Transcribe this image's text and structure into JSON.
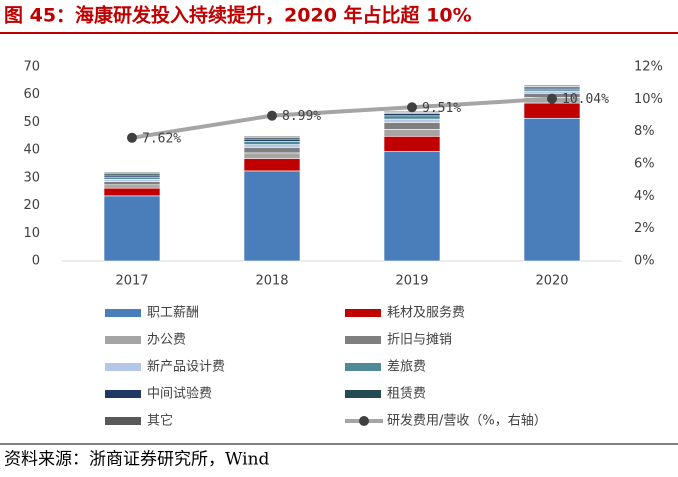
{
  "chart_data": {
    "type": "bar",
    "title": "图 45：海康研发投入持续提升，2020 年占比超 10%",
    "source": "资料来源：浙商证券研究所，Wind",
    "categories": [
      "2017",
      "2018",
      "2019",
      "2020"
    ],
    "ylim": [
      0,
      70
    ],
    "yticks": [
      0,
      10,
      20,
      30,
      40,
      50,
      60,
      70
    ],
    "y2lim": [
      0,
      12
    ],
    "y2ticks": [
      {
        "value": 0,
        "label": "0%"
      },
      {
        "value": 2,
        "label": "2%"
      },
      {
        "value": 4,
        "label": "4%"
      },
      {
        "value": 6,
        "label": "6%"
      },
      {
        "value": 8,
        "label": "8%"
      },
      {
        "value": 10,
        "label": "10%"
      },
      {
        "value": 12,
        "label": "12%"
      }
    ],
    "series": [
      {
        "name": "职工薪酬",
        "color": "#4a7ebb",
        "values": [
          23.5,
          32.5,
          39.5,
          51.5
        ]
      },
      {
        "name": "耗材及服务费",
        "color": "#c00000",
        "values": [
          2.8,
          4.5,
          5.5,
          5.5
        ]
      },
      {
        "name": "办公费",
        "color": "#a5a5a5",
        "values": [
          1.2,
          2.0,
          2.5,
          2.0
        ]
      },
      {
        "name": "折旧与摊销",
        "color": "#7f7f7f",
        "values": [
          1.2,
          2.0,
          2.5,
          1.5
        ]
      },
      {
        "name": "新产品设计费",
        "color": "#b4c7e7",
        "values": [
          0.8,
          1.0,
          1.2,
          0.8
        ]
      },
      {
        "name": "差旅费",
        "color": "#4f8b97",
        "values": [
          0.8,
          1.2,
          1.2,
          0.8
        ]
      },
      {
        "name": "中间试验费",
        "color": "#1f3864",
        "values": [
          0.7,
          0.8,
          0.8,
          0.7
        ]
      },
      {
        "name": "租赁费",
        "color": "#264a52",
        "values": [
          0.5,
          0.5,
          0.4,
          0.3
        ]
      },
      {
        "name": "其它",
        "color": "#595959",
        "values": [
          0.5,
          0.5,
          0.4,
          0.4
        ]
      },
      {
        "name": "研发费用/营收（%，右轴）",
        "type": "line",
        "axis": "y2",
        "color": "#a5a5a5",
        "marker_color": "#404040",
        "values": [
          7.62,
          8.99,
          9.51,
          10.04
        ],
        "value_labels": [
          "7.62%",
          "8.99%",
          "9.51%",
          "10.04%"
        ]
      }
    ]
  }
}
